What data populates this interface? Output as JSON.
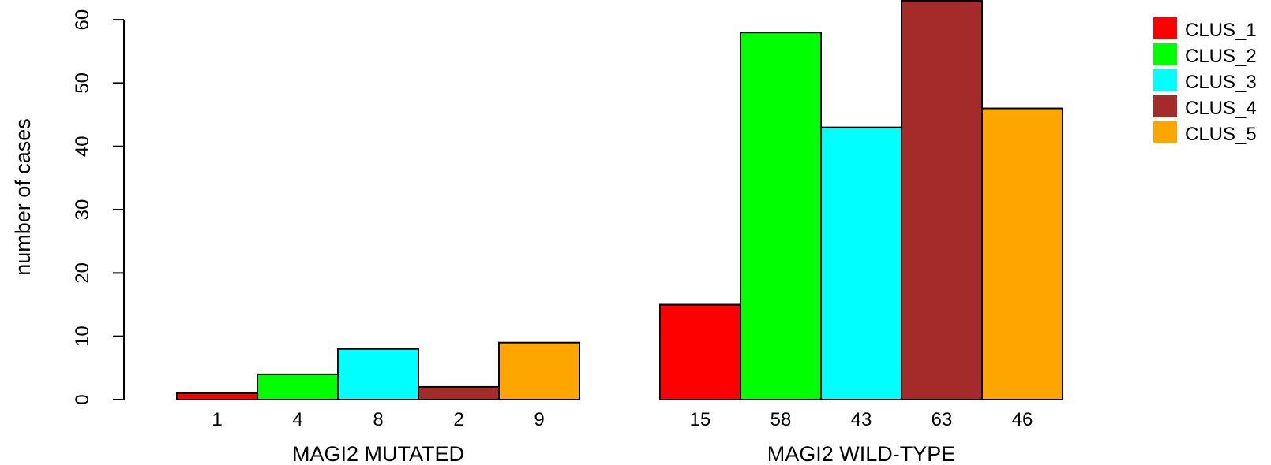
{
  "chart_data": {
    "type": "bar",
    "title": "",
    "ylabel": "number of cases",
    "ylim": [
      0,
      63
    ],
    "y_ticks": [
      0,
      10,
      20,
      30,
      40,
      50,
      60
    ],
    "groups": [
      {
        "label": "MAGI2 MUTATED",
        "values": [
          1,
          4,
          8,
          2,
          9
        ],
        "value_labels": [
          "1",
          "4",
          "8",
          "2",
          "9"
        ]
      },
      {
        "label": "MAGI2 WILD-TYPE",
        "values": [
          15,
          58,
          43,
          63,
          46
        ],
        "value_labels": [
          "15",
          "58",
          "43",
          "63",
          "46"
        ]
      }
    ],
    "series": [
      {
        "name": "CLUS_1",
        "color": "#ff0000"
      },
      {
        "name": "CLUS_2",
        "color": "#00ff00"
      },
      {
        "name": "CLUS_3",
        "color": "#00ffff"
      },
      {
        "name": "CLUS_4",
        "color": "#a52a2a"
      },
      {
        "name": "CLUS_5",
        "color": "#ffa500"
      }
    ],
    "legend_position": "top-right",
    "grid": false
  }
}
